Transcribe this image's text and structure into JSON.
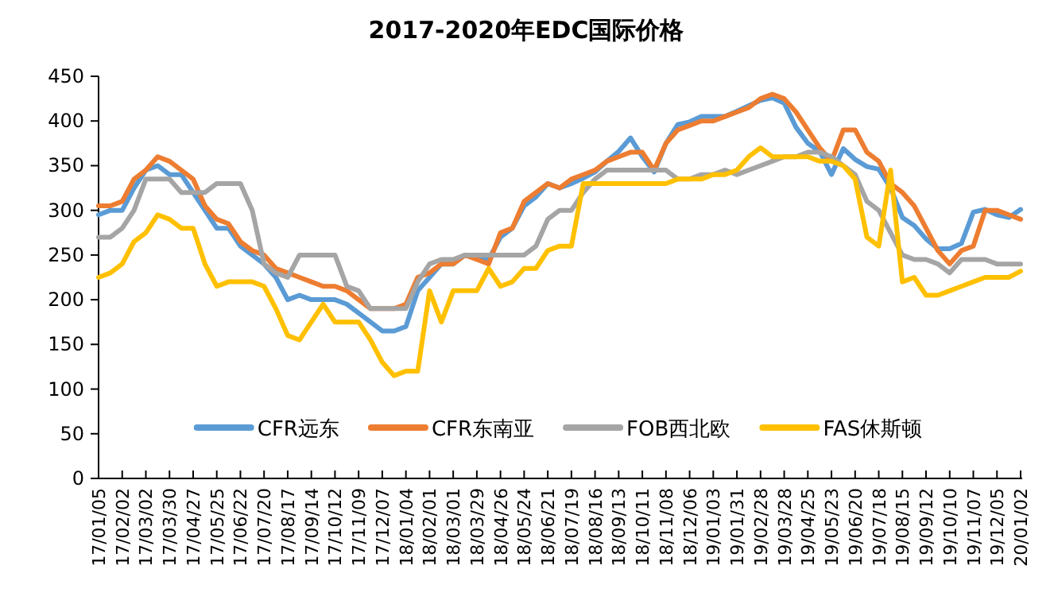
{
  "chart_data": {
    "type": "line",
    "title": "2017-2020年EDC国际价格",
    "categories": [
      "17/01/05",
      null,
      "17/02/02",
      null,
      "17/03/02",
      null,
      "17/03/30",
      null,
      "17/04/27",
      null,
      "17/05/25",
      null,
      "17/06/22",
      null,
      "17/07/20",
      null,
      "17/08/17",
      null,
      "17/09/14",
      null,
      "17/10/12",
      null,
      "17/11/09",
      null,
      "17/12/07",
      null,
      "18/01/04",
      null,
      "18/02/01",
      null,
      "18/03/01",
      null,
      "18/03/29",
      null,
      "18/04/26",
      null,
      "18/05/24",
      null,
      "18/06/21",
      null,
      "18/07/19",
      null,
      "18/08/16",
      null,
      "18/09/13",
      null,
      "18/10/11",
      null,
      "18/11/08",
      null,
      "18/12/06",
      null,
      "19/01/03",
      null,
      "19/01/31",
      null,
      "19/02/28",
      null,
      "19/03/28",
      null,
      "19/04/25",
      null,
      "19/05/23",
      null,
      "19/06/20",
      null,
      "19/07/18",
      null,
      "19/08/15",
      null,
      "19/09/12",
      null,
      "19/10/10",
      null,
      "19/11/07",
      null,
      "19/12/05",
      null,
      "20/01/02"
    ],
    "series": [
      {
        "name": "CFR远东",
        "color": "#5b9bd5",
        "values": [
          295,
          300,
          300,
          325,
          345,
          350,
          340,
          340,
          320,
          300,
          280,
          280,
          260,
          250,
          240,
          225,
          200,
          205,
          200,
          200,
          200,
          195,
          185,
          175,
          165,
          165,
          170,
          210,
          225,
          240,
          240,
          250,
          250,
          245,
          270,
          280,
          305,
          315,
          330,
          325,
          330,
          336,
          343,
          355,
          366,
          381,
          360,
          343,
          375,
          396,
          399,
          405,
          405,
          405,
          411,
          417,
          423,
          426,
          420,
          393,
          375,
          366,
          340,
          369,
          357,
          349,
          346,
          325,
          292,
          283,
          268,
          257,
          257,
          263,
          298,
          301,
          295,
          292,
          301
        ]
      },
      {
        "name": "CFR东南亚",
        "color": "#ed7d31",
        "values": [
          305,
          305,
          310,
          335,
          345,
          360,
          355,
          345,
          335,
          305,
          290,
          285,
          265,
          255,
          250,
          235,
          230,
          225,
          220,
          215,
          215,
          210,
          200,
          190,
          190,
          190,
          195,
          225,
          230,
          240,
          240,
          250,
          245,
          240,
          275,
          280,
          310,
          320,
          330,
          325,
          335,
          340,
          345,
          355,
          360,
          365,
          365,
          345,
          375,
          390,
          395,
          400,
          400,
          405,
          410,
          415,
          425,
          430,
          425,
          410,
          390,
          370,
          355,
          390,
          390,
          365,
          355,
          330,
          320,
          305,
          280,
          255,
          240,
          255,
          260,
          300,
          300,
          295,
          290
        ]
      },
      {
        "name": "FOB西北欧",
        "color": "#a5a5a5",
        "values": [
          270,
          270,
          280,
          300,
          335,
          335,
          335,
          320,
          320,
          320,
          330,
          330,
          330,
          300,
          240,
          230,
          225,
          250,
          250,
          250,
          250,
          215,
          210,
          190,
          190,
          190,
          190,
          220,
          240,
          245,
          245,
          250,
          250,
          250,
          250,
          250,
          250,
          260,
          290,
          300,
          300,
          320,
          335,
          345,
          345,
          345,
          345,
          345,
          345,
          335,
          335,
          340,
          340,
          345,
          340,
          345,
          350,
          355,
          360,
          360,
          365,
          365,
          360,
          350,
          340,
          310,
          300,
          275,
          250,
          245,
          245,
          240,
          230,
          245,
          245,
          245,
          240,
          240,
          240
        ]
      },
      {
        "name": "FAS休斯顿",
        "color": "#ffc000",
        "values": [
          225,
          230,
          240,
          265,
          275,
          295,
          290,
          280,
          280,
          240,
          215,
          220,
          220,
          220,
          215,
          190,
          160,
          155,
          175,
          195,
          175,
          175,
          175,
          155,
          130,
          115,
          120,
          120,
          210,
          175,
          210,
          210,
          210,
          235,
          215,
          220,
          235,
          235,
          255,
          260,
          260,
          330,
          330,
          330,
          330,
          330,
          330,
          330,
          330,
          335,
          335,
          335,
          340,
          340,
          345,
          360,
          370,
          360,
          360,
          360,
          360,
          355,
          355,
          350,
          335,
          270,
          260,
          345,
          220,
          225,
          205,
          205,
          210,
          215,
          220,
          225,
          225,
          225,
          232
        ]
      }
    ],
    "ylim": [
      0,
      450
    ],
    "yticks": [
      0,
      50,
      100,
      150,
      200,
      250,
      300,
      350,
      400,
      450
    ],
    "legend": "bottom",
    "marker": "none",
    "line_style": "solid",
    "grid": false
  }
}
